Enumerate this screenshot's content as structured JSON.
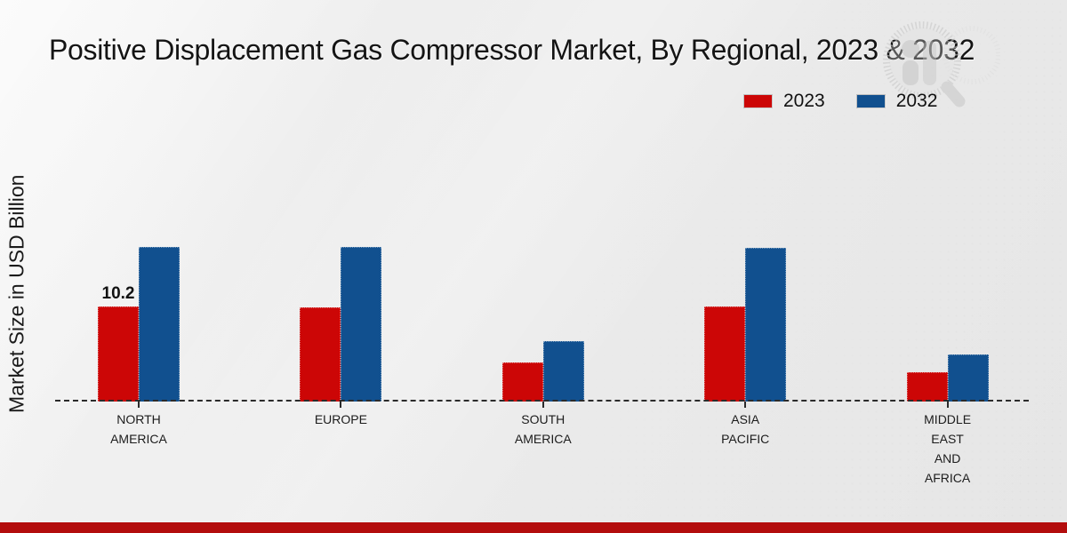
{
  "page": {
    "title": "Positive Displacement Gas Compressor Market, By Regional, 2023 & 2032"
  },
  "icons": {
    "watermark": "magnifier-bar-chart-logo-watermark"
  },
  "colors": {
    "series_2023_red": "#cc0606",
    "series_2032_blue": "#11508f",
    "footer_strip_red": "#b30d0d",
    "baseline": "#2b2b2b"
  },
  "chart_data": {
    "type": "bar",
    "title": "Positive Displacement Gas Compressor Market, By Regional, 2023 & 2032",
    "xlabel": "",
    "ylabel": "Market Size in USD Billion",
    "categories": [
      "NORTH AMERICA",
      "EUROPE",
      "SOUTH AMERICA",
      "ASIA PACIFIC",
      "MIDDLE EAST AND AFRICA"
    ],
    "series": [
      {
        "name": "2023",
        "color": "#cc0606",
        "values": [
          10.2,
          10.1,
          4.2,
          10.2,
          3.1
        ]
      },
      {
        "name": "2032",
        "color": "#11508f",
        "values": [
          16.6,
          16.6,
          6.5,
          16.5,
          5.0
        ]
      }
    ],
    "data_labels": [
      {
        "series": "2023",
        "category": "NORTH AMERICA",
        "value": "10.2"
      }
    ],
    "ylim": [
      0,
      18
    ],
    "grid": false,
    "y_axis_ticks_visible": false,
    "baseline_style": "dashed",
    "legend_position": "top-right"
  }
}
